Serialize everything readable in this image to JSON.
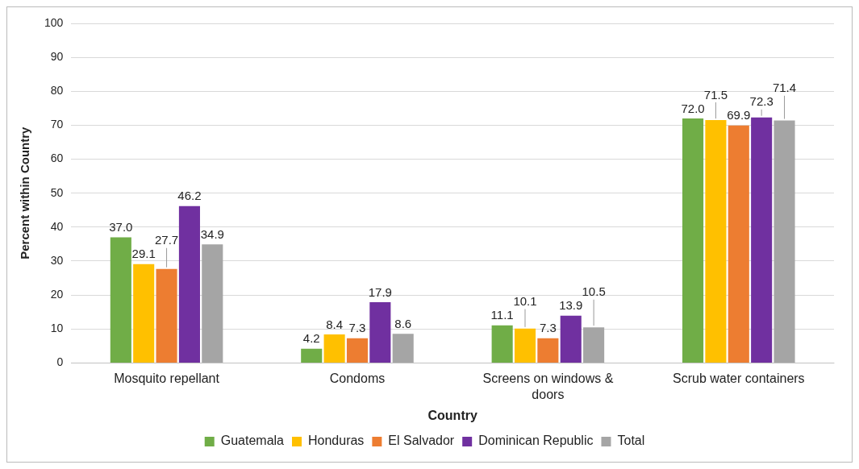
{
  "chart_data": {
    "type": "bar",
    "xlabel": "Country",
    "ylabel": "Percent within Country",
    "categories": [
      "Mosquito repellant",
      "Condoms",
      "Screens on windows & doors",
      "Scrub water containers"
    ],
    "series": [
      {
        "name": "Guatemala",
        "color": "#70ad47",
        "values": [
          37.0,
          4.2,
          11.1,
          72.0
        ],
        "value_labels": [
          "37.0",
          "4.2",
          "11.1",
          "72.0"
        ]
      },
      {
        "name": "Honduras",
        "color": "#ffc000",
        "values": [
          29.1,
          8.4,
          10.1,
          71.5
        ],
        "value_labels": [
          "29.1",
          "8.4",
          "10.1",
          "71.5"
        ]
      },
      {
        "name": "El Salvador",
        "color": "#ed7d31",
        "values": [
          27.7,
          7.3,
          7.3,
          69.9
        ],
        "value_labels": [
          "27.7",
          "7.3",
          "7.3",
          "69.9"
        ]
      },
      {
        "name": "Dominican Republic",
        "color": "#7030a0",
        "values": [
          46.2,
          17.9,
          13.9,
          72.3
        ],
        "value_labels": [
          "46.2",
          "17.9",
          "13.9",
          "72.3"
        ]
      },
      {
        "name": "Total",
        "color": "#a5a5a5",
        "values": [
          34.9,
          8.6,
          10.5,
          71.4
        ],
        "value_labels": [
          "34.9",
          "8.6",
          "10.5",
          "71.4"
        ]
      }
    ],
    "ylim": [
      0,
      100
    ],
    "yticks": [
      0,
      10,
      20,
      30,
      40,
      50,
      60,
      70,
      80,
      90,
      100
    ],
    "grid": "y",
    "legend": "bottom"
  }
}
